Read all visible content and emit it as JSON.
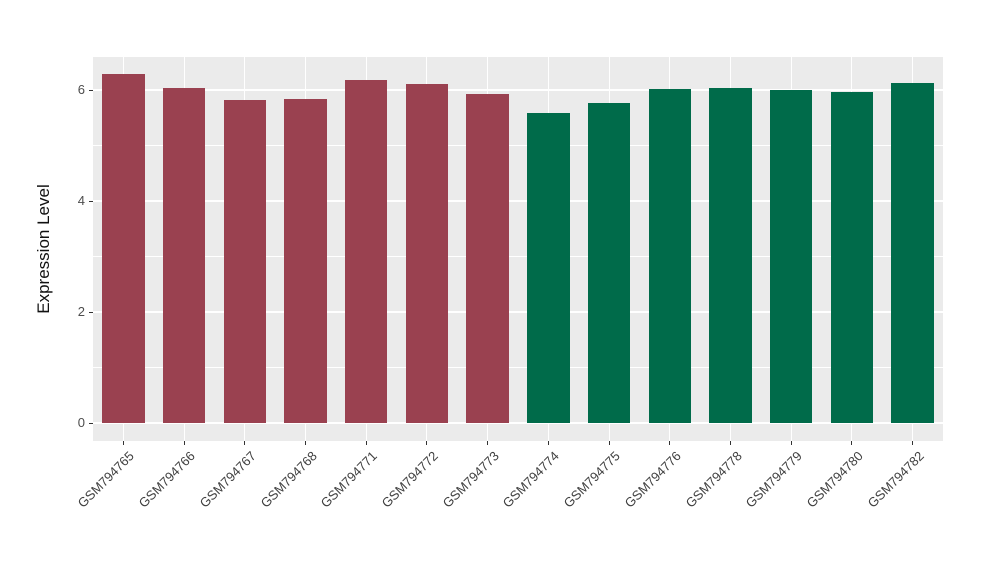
{
  "chart_data": {
    "type": "bar",
    "title": "",
    "xlabel": "",
    "ylabel": "Expression Level",
    "categories": [
      "GSM794765",
      "GSM794766",
      "GSM794767",
      "GSM794768",
      "GSM794771",
      "GSM794772",
      "GSM794773",
      "GSM794774",
      "GSM794775",
      "GSM794776",
      "GSM794778",
      "GSM794779",
      "GSM794780",
      "GSM794782"
    ],
    "values": [
      6.29,
      6.04,
      5.82,
      5.84,
      6.18,
      6.11,
      5.94,
      5.59,
      5.77,
      6.02,
      6.04,
      6.0,
      5.97,
      6.13
    ],
    "bar_colors": [
      "#9A4150",
      "#9A4150",
      "#9A4150",
      "#9A4150",
      "#9A4150",
      "#9A4150",
      "#9A4150",
      "#006B4A",
      "#006B4A",
      "#006B4A",
      "#006B4A",
      "#006B4A",
      "#006B4A",
      "#006B4A"
    ],
    "group_colors": {
      "group1": "#9A4150",
      "group2": "#006B4A"
    },
    "yticks": [
      0,
      2,
      4,
      6
    ],
    "ytick_labels": [
      "0",
      "2",
      "4",
      "6"
    ],
    "ylim": [
      -0.32,
      6.6
    ],
    "bar_width_frac": 0.7,
    "grid": true,
    "legend": false,
    "panel_bg": "#EBEBEB",
    "grid_color": "#FFFFFF",
    "tick_color": "#333333",
    "axis_text_color": "#4D4D4D",
    "x_label_rotation_deg": -45
  }
}
